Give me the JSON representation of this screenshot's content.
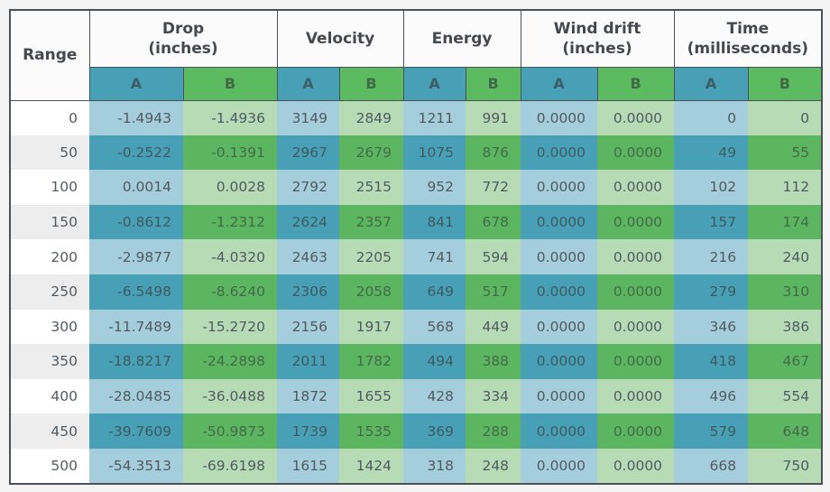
{
  "theme": {
    "page_bg": "#f4f4f5",
    "border_dark": "#4a5257",
    "header_bg": "#fbfbfc",
    "header_text": "#45494e",
    "teal_header": "#47a0b5",
    "green_header": "#5cba60",
    "teal_light": "#a5cedc",
    "green_light": "#b7dcb5",
    "teal_dark": "#47a0b5",
    "green_dark": "#5cb560",
    "range_light": "#ffffff",
    "range_dark": "#ededee",
    "body_text": "#515a60"
  },
  "chart_data": {
    "type": "table",
    "title": "",
    "column_groups": [
      {
        "label_line1": "Range",
        "label_line2": "",
        "subcols": []
      },
      {
        "label_line1": "Drop",
        "label_line2": "(inches)",
        "subcols": [
          "A",
          "B"
        ]
      },
      {
        "label_line1": "Velocity",
        "label_line2": "",
        "subcols": [
          "A",
          "B"
        ]
      },
      {
        "label_line1": "Energy",
        "label_line2": "",
        "subcols": [
          "A",
          "B"
        ]
      },
      {
        "label_line1": "Wind drift",
        "label_line2": "(inches)",
        "subcols": [
          "A",
          "B"
        ]
      },
      {
        "label_line1": "Time",
        "label_line2": "(milliseconds)",
        "subcols": [
          "A",
          "B"
        ]
      }
    ],
    "rows": [
      [
        "0",
        "-1.4943",
        "-1.4936",
        "3149",
        "2849",
        "1211",
        "991",
        "0.0000",
        "0.0000",
        "0",
        "0"
      ],
      [
        "50",
        "-0.2522",
        "-0.1391",
        "2967",
        "2679",
        "1075",
        "876",
        "0.0000",
        "0.0000",
        "49",
        "55"
      ],
      [
        "100",
        "0.0014",
        "0.0028",
        "2792",
        "2515",
        "952",
        "772",
        "0.0000",
        "0.0000",
        "102",
        "112"
      ],
      [
        "150",
        "-0.8612",
        "-1.2312",
        "2624",
        "2357",
        "841",
        "678",
        "0.0000",
        "0.0000",
        "157",
        "174"
      ],
      [
        "200",
        "-2.9877",
        "-4.0320",
        "2463",
        "2205",
        "741",
        "594",
        "0.0000",
        "0.0000",
        "216",
        "240"
      ],
      [
        "250",
        "-6.5498",
        "-8.6240",
        "2306",
        "2058",
        "649",
        "517",
        "0.0000",
        "0.0000",
        "279",
        "310"
      ],
      [
        "300",
        "-11.7489",
        "-15.2720",
        "2156",
        "1917",
        "568",
        "449",
        "0.0000",
        "0.0000",
        "346",
        "386"
      ],
      [
        "350",
        "-18.8217",
        "-24.2898",
        "2011",
        "1782",
        "494",
        "388",
        "0.0000",
        "0.0000",
        "418",
        "467"
      ],
      [
        "400",
        "-28.0485",
        "-36.0488",
        "1872",
        "1655",
        "428",
        "334",
        "0.0000",
        "0.0000",
        "496",
        "554"
      ],
      [
        "450",
        "-39.7609",
        "-50.9873",
        "1739",
        "1535",
        "369",
        "288",
        "0.0000",
        "0.0000",
        "579",
        "648"
      ],
      [
        "500",
        "-54.3513",
        "-69.6198",
        "1615",
        "1424",
        "318",
        "248",
        "0.0000",
        "0.0000",
        "668",
        "750"
      ]
    ]
  }
}
